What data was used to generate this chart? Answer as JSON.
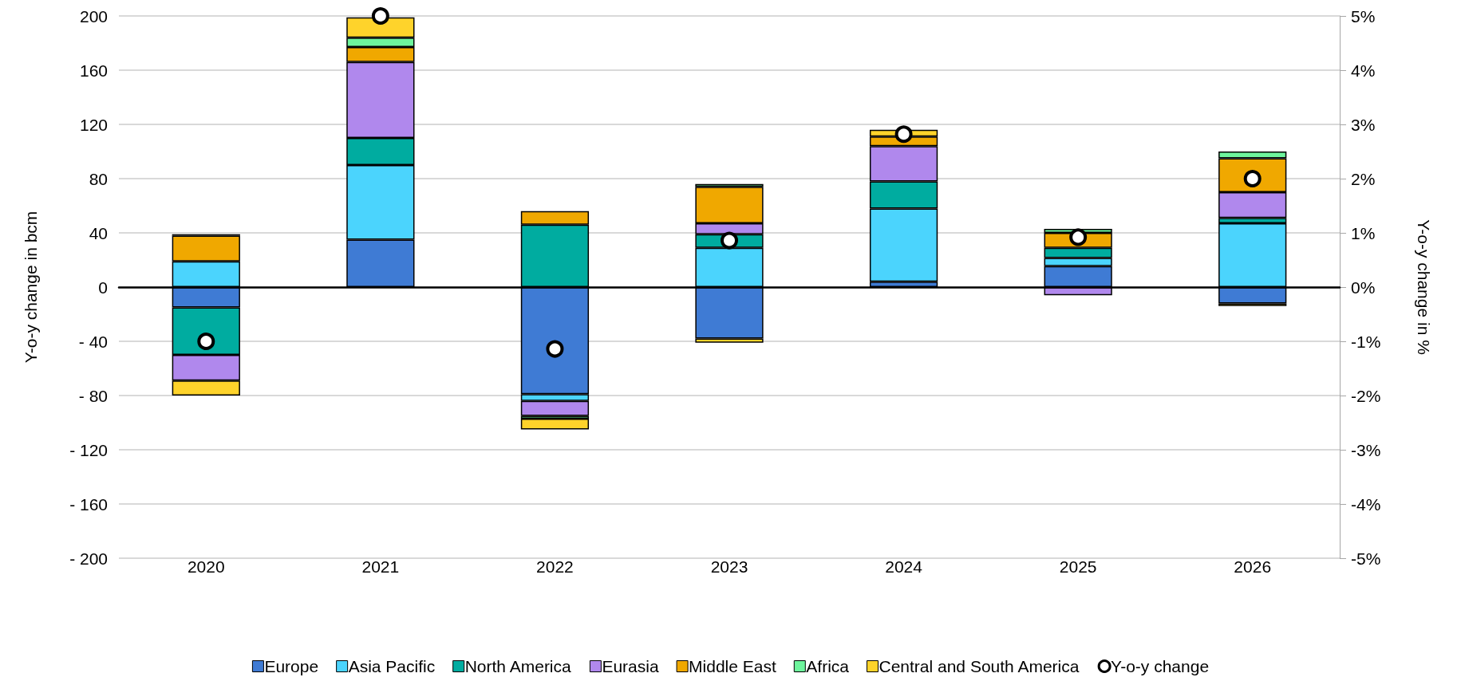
{
  "chart_data": {
    "type": "bar",
    "stacked": true,
    "ylabel": "Y-o-y change in bcm",
    "y2label": "Y-o-y change in %",
    "categories": [
      "2020",
      "2021",
      "2022",
      "2023",
      "2024",
      "2025",
      "2026"
    ],
    "series": [
      {
        "name": "Europe",
        "color": "#3f7bd4",
        "values": [
          -15,
          35,
          -79,
          -38,
          4,
          15.5,
          -12
        ]
      },
      {
        "name": "Asia Pacific",
        "color": "#4bd4fd",
        "values": [
          19,
          55,
          -5,
          29,
          54,
          6,
          47
        ]
      },
      {
        "name": "North America",
        "color": "#00aca0",
        "values": [
          -35,
          20,
          46,
          10,
          20,
          7.5,
          4
        ]
      },
      {
        "name": "Eurasia",
        "color": "#b088ed",
        "values": [
          -19,
          56,
          -11,
          8,
          26,
          -6,
          19
        ]
      },
      {
        "name": "Middle East",
        "color": "#f0a800",
        "values": [
          19,
          11,
          10,
          27,
          7,
          11,
          25
        ]
      },
      {
        "name": "Africa",
        "color": "#6ef59d",
        "values": [
          1,
          7,
          -2,
          2,
          null,
          3,
          5
        ]
      },
      {
        "name": "Central and South America",
        "color": "#fed32b",
        "values": [
          -11,
          15,
          -8,
          -3,
          5,
          null,
          -2
        ]
      },
      {
        "name": "Y-o-y change",
        "type": "scatter",
        "axis": "y2",
        "color": "#ffffff",
        "values": [
          -1.0,
          5.0,
          -1.14,
          0.86,
          2.82,
          0.92,
          2.0
        ]
      }
    ],
    "ylim": [
      -200,
      200
    ],
    "yticks": [
      {
        "value": -200,
        "label": "- 200"
      },
      {
        "value": -160,
        "label": "- 160"
      },
      {
        "value": -120,
        "label": "- 120"
      },
      {
        "value": -80,
        "label": "- 80"
      },
      {
        "value": -40,
        "label": "- 40"
      },
      0,
      40,
      80,
      120,
      160,
      200
    ],
    "y2lim": [
      -5,
      5
    ],
    "y2ticks": [
      {
        "value": -5,
        "label": "-5%"
      },
      {
        "value": -4,
        "label": "-4%"
      },
      {
        "value": -3,
        "label": "-3%"
      },
      {
        "value": -2,
        "label": "-2%"
      },
      {
        "value": -1,
        "label": "-1%"
      },
      {
        "value": 0,
        "label": "0%"
      },
      {
        "value": 1,
        "label": "1%"
      },
      {
        "value": 2,
        "label": "2%"
      },
      {
        "value": 3,
        "label": "3%"
      },
      {
        "value": 4,
        "label": "4%"
      },
      {
        "value": 5,
        "label": "5%"
      }
    ],
    "grid": "y",
    "legend": "bottom",
    "marker": "circle"
  }
}
